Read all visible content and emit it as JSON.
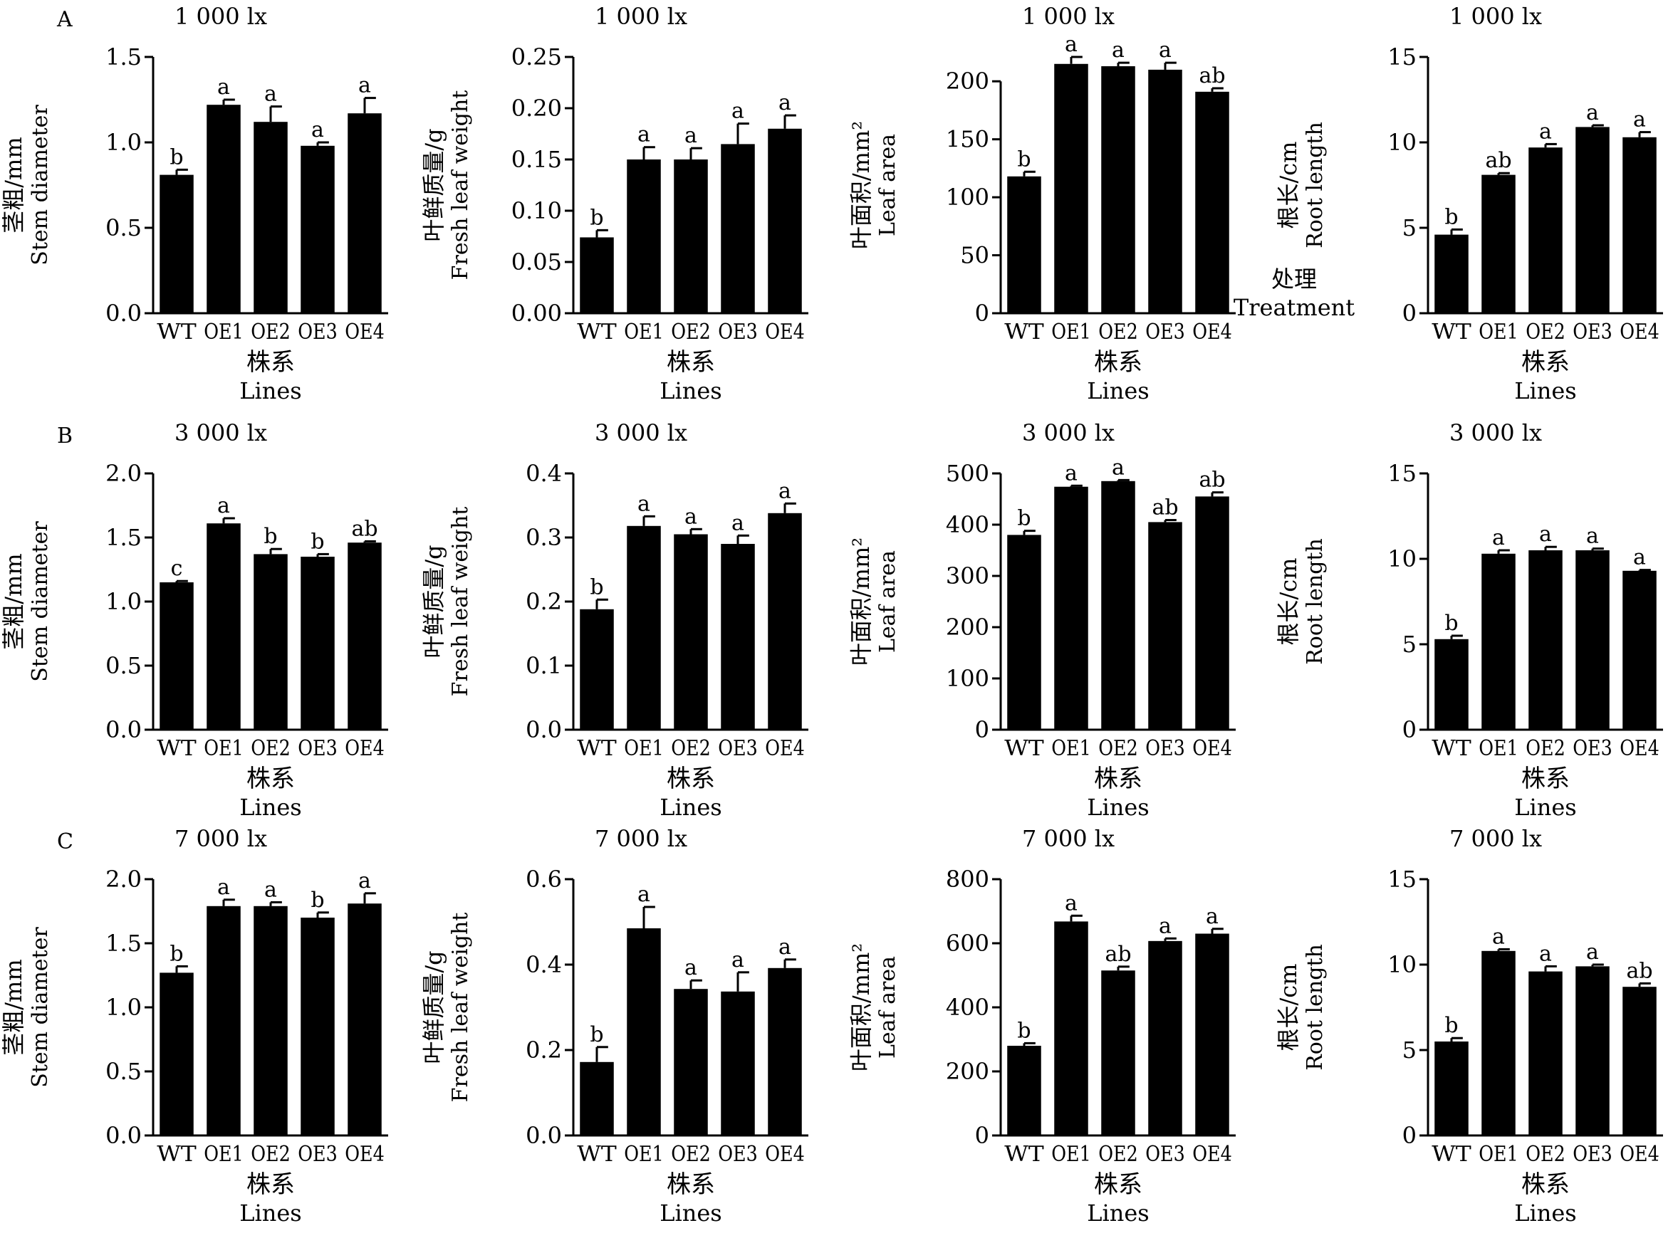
{
  "row_labels": [
    "A",
    "B",
    "C"
  ],
  "treatment_note": {
    "zh": "处理",
    "en": "Treatment"
  },
  "chart_data": [
    {
      "type": "bar",
      "row": "A",
      "title": "1 000 lx",
      "ylabel_zh": "茎粗/mm",
      "ylabel_en": "Stem diameter",
      "xlabel_zh": "株系",
      "xlabel_en": "Lines",
      "categories": [
        "WT",
        "OE1",
        "OE2",
        "OE3",
        "OE4"
      ],
      "values": [
        0.81,
        1.22,
        1.12,
        0.98,
        1.17
      ],
      "errors": [
        0.03,
        0.03,
        0.09,
        0.02,
        0.09
      ],
      "letters": [
        "b",
        "a",
        "a",
        "a",
        "a"
      ],
      "ylim": [
        0,
        1.5
      ],
      "yticks": [
        "0.0",
        "0.5",
        "1.0",
        "1.5"
      ]
    },
    {
      "type": "bar",
      "row": "A",
      "title": "1 000 lx",
      "ylabel_zh": "叶鲜质量/g",
      "ylabel_en": "Fresh leaf weight",
      "xlabel_zh": "株系",
      "xlabel_en": "Lines",
      "categories": [
        "WT",
        "OE1",
        "OE2",
        "OE3",
        "OE4"
      ],
      "values": [
        0.074,
        0.15,
        0.15,
        0.165,
        0.18
      ],
      "errors": [
        0.007,
        0.012,
        0.011,
        0.02,
        0.013
      ],
      "letters": [
        "b",
        "a",
        "a",
        "a",
        "a"
      ],
      "ylim": [
        0,
        0.25
      ],
      "yticks": [
        "0.00",
        "0.05",
        "0.10",
        "0.15",
        "0.20",
        "0.25"
      ]
    },
    {
      "type": "bar",
      "row": "A",
      "title": "1 000 lx",
      "ylabel_zh": "叶面积/mm²",
      "ylabel_en": "Leaf area",
      "xlabel_zh": "株系",
      "xlabel_en": "Lines",
      "categories": [
        "WT",
        "OE1",
        "OE2",
        "OE3",
        "OE4"
      ],
      "values": [
        118,
        215,
        213,
        210,
        191
      ],
      "errors": [
        4,
        6,
        3,
        6,
        3
      ],
      "letters": [
        "b",
        "a",
        "a",
        "a",
        "ab"
      ],
      "ylim": [
        0,
        200
      ],
      "yticks": [
        "0",
        "50",
        "100",
        "150",
        "200"
      ]
    },
    {
      "type": "bar",
      "row": "A",
      "title": "1 000 lx",
      "ylabel_zh": "根长/cm",
      "ylabel_en": "Root length",
      "xlabel_zh": "株系",
      "xlabel_en": "Lines",
      "categories": [
        "WT",
        "OE1",
        "OE2",
        "OE3",
        "OE4"
      ],
      "values": [
        4.6,
        8.1,
        9.7,
        10.9,
        10.3
      ],
      "errors": [
        0.3,
        0.1,
        0.2,
        0.1,
        0.3
      ],
      "letters": [
        "b",
        "ab",
        "a",
        "a",
        "a"
      ],
      "ylim": [
        0,
        15
      ],
      "yticks": [
        "0",
        "5",
        "10",
        "15"
      ]
    },
    {
      "type": "bar",
      "row": "B",
      "title": "3 000 lx",
      "ylabel_zh": "茎粗/mm",
      "ylabel_en": "Stem diameter",
      "xlabel_zh": "株系",
      "xlabel_en": "Lines",
      "categories": [
        "WT",
        "OE1",
        "OE2",
        "OE3",
        "OE4"
      ],
      "values": [
        1.15,
        1.61,
        1.37,
        1.35,
        1.46
      ],
      "errors": [
        0.01,
        0.04,
        0.04,
        0.02,
        0.01
      ],
      "letters": [
        "c",
        "a",
        "b",
        "b",
        "ab"
      ],
      "ylim": [
        0,
        2.0
      ],
      "yticks": [
        "0.0",
        "0.5",
        "1.0",
        "1.5",
        "2.0"
      ]
    },
    {
      "type": "bar",
      "row": "B",
      "title": "3 000 lx",
      "ylabel_zh": "叶鲜质量/g",
      "ylabel_en": "Fresh leaf weight",
      "xlabel_zh": "株系",
      "xlabel_en": "Lines",
      "categories": [
        "WT",
        "OE1",
        "OE2",
        "OE3",
        "OE4"
      ],
      "values": [
        0.188,
        0.318,
        0.305,
        0.29,
        0.338
      ],
      "errors": [
        0.015,
        0.015,
        0.008,
        0.013,
        0.015
      ],
      "letters": [
        "b",
        "a",
        "a",
        "a",
        "a"
      ],
      "ylim": [
        0,
        0.4
      ],
      "yticks": [
        "0.0",
        "0.1",
        "0.2",
        "0.3",
        "0.4"
      ]
    },
    {
      "type": "bar",
      "row": "B",
      "title": "3 000 lx",
      "ylabel_zh": "叶面积/mm²",
      "ylabel_en": "Leaf area",
      "xlabel_zh": "株系",
      "xlabel_en": "Lines",
      "categories": [
        "WT",
        "OE1",
        "OE2",
        "OE3",
        "OE4"
      ],
      "values": [
        380,
        474,
        485,
        405,
        455
      ],
      "errors": [
        8,
        2,
        2,
        4,
        8
      ],
      "letters": [
        "b",
        "a",
        "a",
        "ab",
        "ab"
      ],
      "ylim": [
        0,
        500
      ],
      "yticks": [
        "0",
        "100",
        "200",
        "300",
        "400",
        "500"
      ]
    },
    {
      "type": "bar",
      "row": "B",
      "title": "3 000 lx",
      "ylabel_zh": "根长/cm",
      "ylabel_en": "Root length",
      "xlabel_zh": "株系",
      "xlabel_en": "Lines",
      "categories": [
        "WT",
        "OE1",
        "OE2",
        "OE3",
        "OE4"
      ],
      "values": [
        5.3,
        10.3,
        10.5,
        10.5,
        9.3
      ],
      "errors": [
        0.2,
        0.2,
        0.2,
        0.1,
        0.05
      ],
      "letters": [
        "b",
        "a",
        "a",
        "a",
        "a"
      ],
      "ylim": [
        0,
        15
      ],
      "yticks": [
        "0",
        "5",
        "10",
        "15"
      ]
    },
    {
      "type": "bar",
      "row": "C",
      "title": "7 000 lx",
      "ylabel_zh": "茎粗/mm",
      "ylabel_en": "Stem diameter",
      "xlabel_zh": "株系",
      "xlabel_en": "Lines",
      "categories": [
        "WT",
        "OE1",
        "OE2",
        "OE3",
        "OE4"
      ],
      "values": [
        1.27,
        1.79,
        1.79,
        1.7,
        1.81
      ],
      "errors": [
        0.05,
        0.05,
        0.03,
        0.04,
        0.08
      ],
      "letters": [
        "b",
        "a",
        "a",
        "b",
        "a"
      ],
      "ylim": [
        0,
        2.0
      ],
      "yticks": [
        "0.0",
        "0.5",
        "1.0",
        "1.5",
        "2.0"
      ]
    },
    {
      "type": "bar",
      "row": "C",
      "title": "7 000 lx",
      "ylabel_zh": "叶鲜质量/g",
      "ylabel_en": "Fresh leaf weight",
      "xlabel_zh": "株系",
      "xlabel_en": "Lines",
      "categories": [
        "WT",
        "OE1",
        "OE2",
        "OE3",
        "OE4"
      ],
      "values": [
        0.172,
        0.485,
        0.343,
        0.337,
        0.392
      ],
      "errors": [
        0.035,
        0.05,
        0.02,
        0.045,
        0.02
      ],
      "letters": [
        "b",
        "a",
        "a",
        "a",
        "a"
      ],
      "ylim": [
        0,
        0.6
      ],
      "yticks": [
        "0.0",
        "0.2",
        "0.4",
        "0.6"
      ]
    },
    {
      "type": "bar",
      "row": "C",
      "title": "7 000 lx",
      "ylabel_zh": "叶面积/mm²",
      "ylabel_en": "Leaf area",
      "xlabel_zh": "株系",
      "xlabel_en": "Lines",
      "categories": [
        "WT",
        "OE1",
        "OE2",
        "OE3",
        "OE4"
      ],
      "values": [
        280,
        668,
        515,
        607,
        630
      ],
      "errors": [
        8,
        18,
        12,
        8,
        15
      ],
      "letters": [
        "b",
        "a",
        "ab",
        "a",
        "a"
      ],
      "ylim": [
        0,
        800
      ],
      "yticks": [
        "0",
        "200",
        "400",
        "600",
        "800"
      ]
    },
    {
      "type": "bar",
      "row": "C",
      "title": "7 000 lx",
      "ylabel_zh": "根长/cm",
      "ylabel_en": "Root length",
      "xlabel_zh": "株系",
      "xlabel_en": "Lines",
      "categories": [
        "WT",
        "OE1",
        "OE2",
        "OE3",
        "OE4"
      ],
      "values": [
        5.5,
        10.8,
        9.6,
        9.9,
        8.7
      ],
      "errors": [
        0.2,
        0.1,
        0.3,
        0.1,
        0.2
      ],
      "letters": [
        "b",
        "a",
        "a",
        "a",
        "ab"
      ],
      "ylim": [
        0,
        15
      ],
      "yticks": [
        "0",
        "5",
        "10",
        "15"
      ]
    }
  ]
}
